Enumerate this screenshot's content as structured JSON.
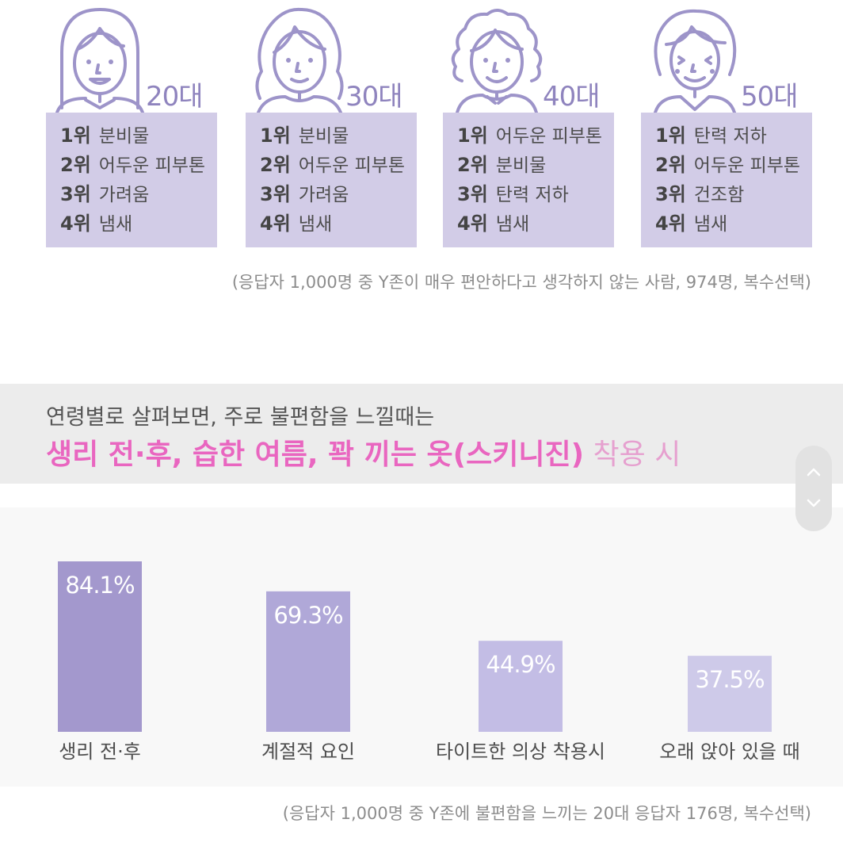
{
  "age_groups": [
    {
      "age": "20대",
      "ranks": [
        {
          "rank": "1위",
          "item": "분비물"
        },
        {
          "rank": "2위",
          "item": "어두운 피부톤"
        },
        {
          "rank": "3위",
          "item": "가려움"
        },
        {
          "rank": "4위",
          "item": "냄새"
        }
      ]
    },
    {
      "age": "30대",
      "ranks": [
        {
          "rank": "1위",
          "item": "분비물"
        },
        {
          "rank": "2위",
          "item": "어두운 피부톤"
        },
        {
          "rank": "3위",
          "item": "가려움"
        },
        {
          "rank": "4위",
          "item": "냄새"
        }
      ]
    },
    {
      "age": "40대",
      "ranks": [
        {
          "rank": "1위",
          "item": "어두운 피부톤"
        },
        {
          "rank": "2위",
          "item": "분비물"
        },
        {
          "rank": "3위",
          "item": "탄력 저하"
        },
        {
          "rank": "4위",
          "item": "냄새"
        }
      ]
    },
    {
      "age": "50대",
      "ranks": [
        {
          "rank": "1위",
          "item": "탄력 저하"
        },
        {
          "rank": "2위",
          "item": "어두운 피부톤"
        },
        {
          "rank": "3위",
          "item": "건조함"
        },
        {
          "rank": "4위",
          "item": "냄새"
        }
      ]
    }
  ],
  "note_top": "(응답자 1,000명 중 Y존이 매우 편안하다고 생각하지 않는 사람, 974명, 복수선택)",
  "banner": {
    "line1": "연령별로 살펴보면, 주로 불편함을 느낄때는",
    "highlight": "생리 전·후, 습한 여름, 꽉 끼는 옷(스키니진)",
    "rest": " 착용 시"
  },
  "note_bottom": "(응답자 1,000명 중 Y존에 불편함을 느끼는 20대 응답자 176명, 복수선택)",
  "colors": {
    "bar_colors": [
      "#a398cd",
      "#b0a8d8",
      "#c3bde5",
      "#cecae9"
    ],
    "avatar_stroke": "#9d94c9",
    "accent_pink": "#e966c0"
  },
  "chart_data": {
    "type": "bar",
    "categories": [
      "생리 전·후",
      "계절적 요인",
      "타이트한 의상 착용시",
      "오래 앉아 있을 때"
    ],
    "values": [
      84.1,
      69.3,
      44.9,
      37.5
    ],
    "value_labels": [
      "84.1%",
      "69.3%",
      "44.9%",
      "37.5%"
    ],
    "ylim": [
      0,
      84.1
    ],
    "grid": false,
    "legend": "none"
  }
}
